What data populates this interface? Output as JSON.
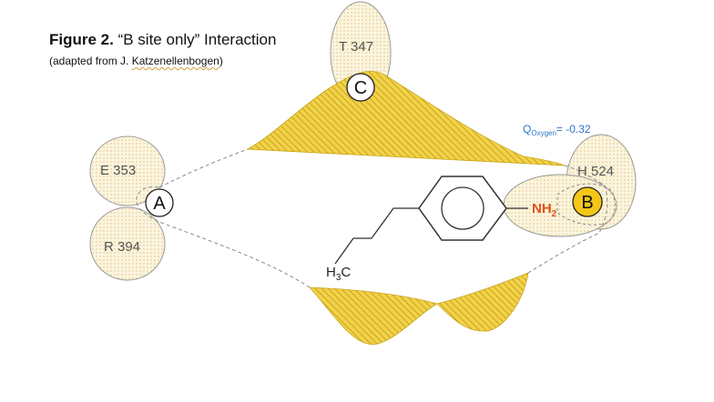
{
  "caption": {
    "title_bold": "Figure 2.",
    "title_rest": " “B site only” Interaction",
    "subtitle_prefix": "(adapted from J. ",
    "subtitle_name": "Katzenellenbogen",
    "subtitle_suffix": ")"
  },
  "residues": {
    "e353": "E 353",
    "r394": "R 394",
    "t347": "T 347",
    "h524": "H 524"
  },
  "sites": {
    "a": "A",
    "b": "B",
    "c": "C"
  },
  "ligand": {
    "amine_main": "NH",
    "amine_sub": "2",
    "methyl_h": "H",
    "methyl_sub": "3",
    "methyl_c": "C"
  },
  "charge": {
    "q_main": "Q",
    "q_sub": "Oxygen",
    "q_value": "= -0.32"
  },
  "colors": {
    "pocket_fill": "#f2d24a",
    "pocket_hatch": "#c9a51a",
    "residue_fill": "#fbf4df",
    "residue_dots": "#e0c070",
    "site_b_fill": "#f5c518",
    "amine": "#e0501a",
    "charge": "#2e74c8",
    "outline": "#999999"
  }
}
